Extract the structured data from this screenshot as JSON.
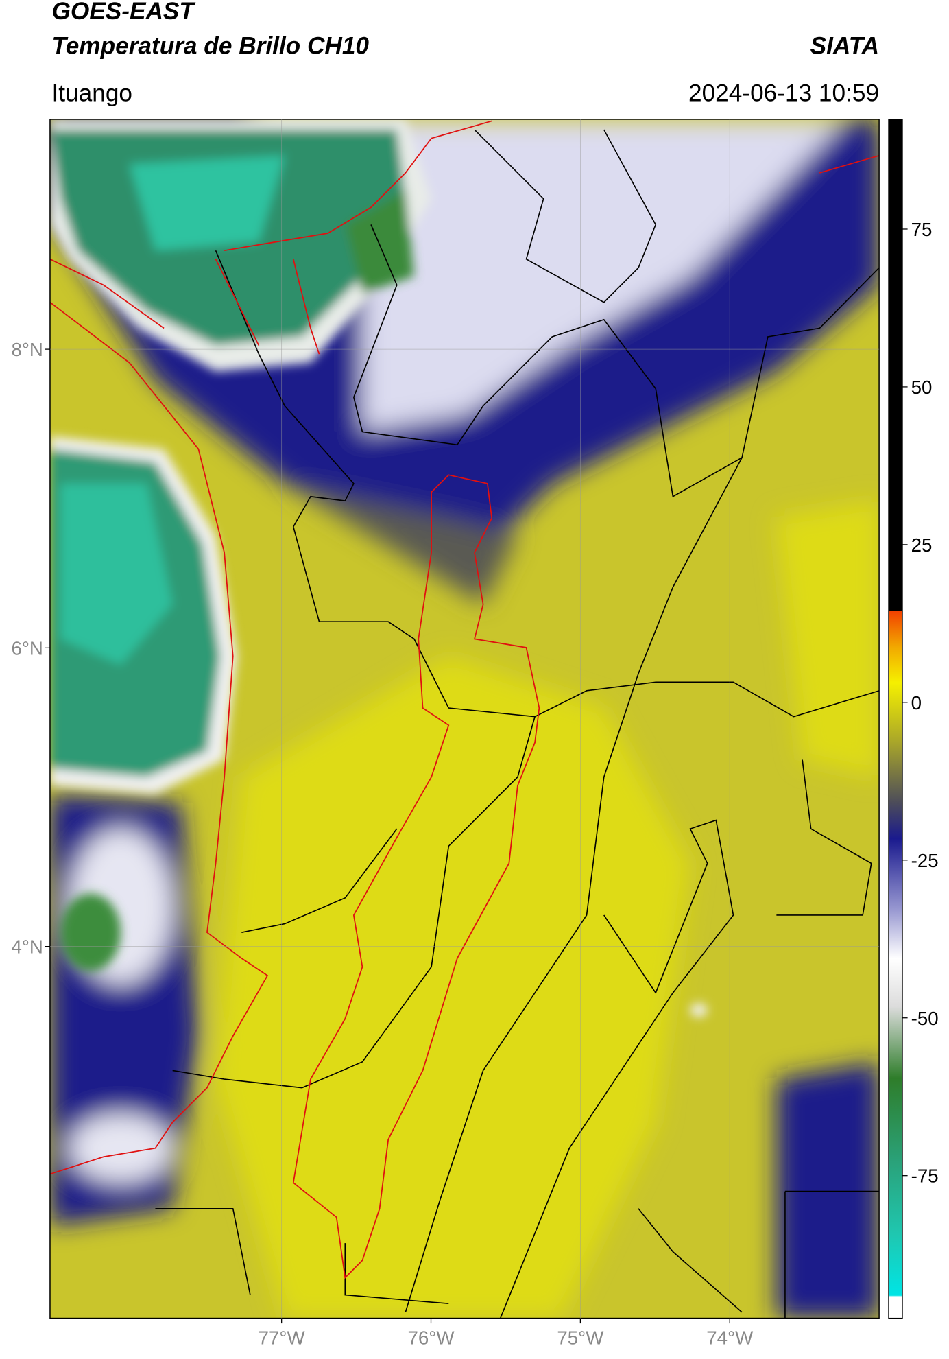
{
  "map": {
    "title": "GOES-EAST",
    "subtitle": "Temperatura de Brillo CH10",
    "source": "SIATA",
    "region": "Ituango",
    "datetime": "2024-06-13 10:59",
    "xlim": [
      -78.55,
      -73.0
    ],
    "ylim": [
      1.51,
      9.54
    ],
    "xticks": [
      {
        "value": -77,
        "label": "77°W"
      },
      {
        "value": -76,
        "label": "76°W"
      },
      {
        "value": -75,
        "label": "75°W"
      },
      {
        "value": -74,
        "label": "74°W"
      }
    ],
    "yticks": [
      {
        "value": 8,
        "label": "8°N"
      },
      {
        "value": 6,
        "label": "6°N"
      },
      {
        "value": 4,
        "label": "4°N"
      }
    ],
    "grid": true,
    "colorbar": {
      "lim": [
        -97.6,
        92.4
      ],
      "ticks": [
        75,
        50,
        25,
        0,
        -25,
        -50,
        -75
      ]
    }
  }
}
